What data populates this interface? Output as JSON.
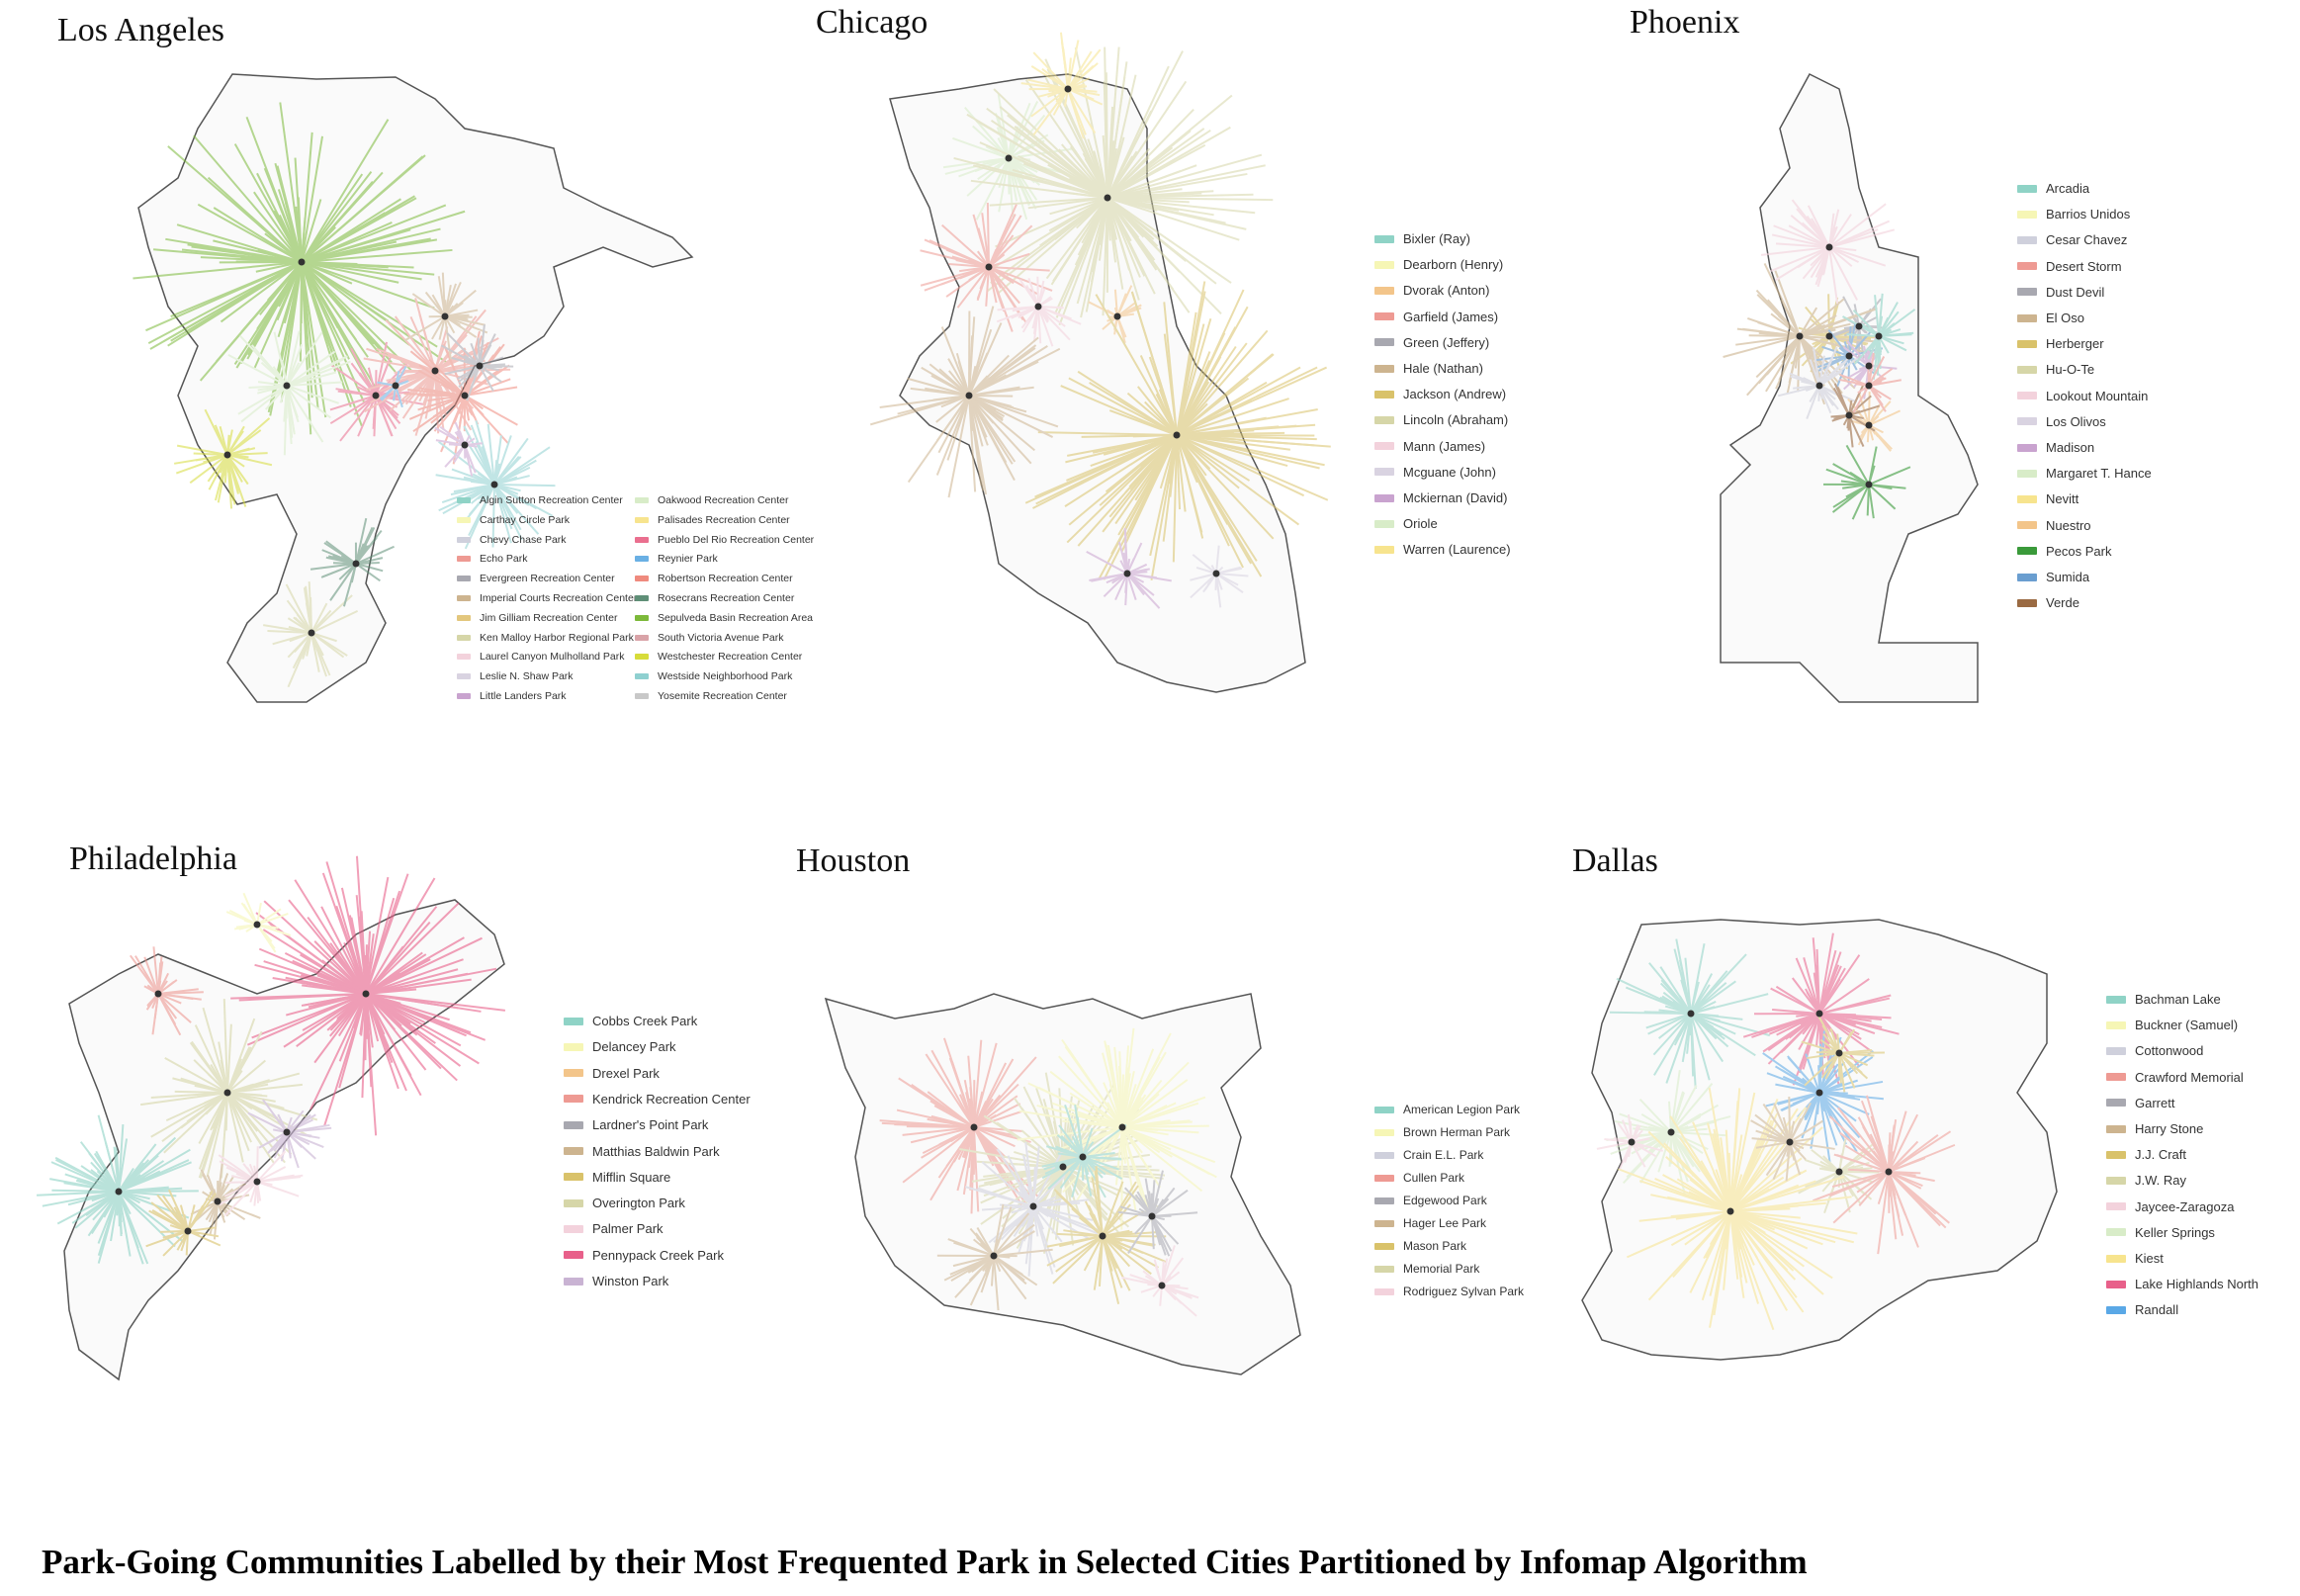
{
  "caption": "Park-Going Communities Labelled by their Most Frequented Park in Selected Cities Partitioned by Infomap Algorithm",
  "panels": [
    {
      "id": "los-angeles",
      "title": "Los Angeles",
      "legend": [
        {
          "label": "Algin Sutton Recreation Center",
          "color": "#8fd3c6"
        },
        {
          "label": "Carthay Circle Park",
          "color": "#f6f6b5"
        },
        {
          "label": "Chevy Chase Park",
          "color": "#cfd0dc"
        },
        {
          "label": "Echo Park",
          "color": "#ee9a93"
        },
        {
          "label": "Evergreen Recreation Center",
          "color": "#a8a8b0"
        },
        {
          "label": "Imperial Courts Recreation Center",
          "color": "#cdb48f"
        },
        {
          "label": "Jim Gilliam Recreation Center",
          "color": "#e3c77d"
        },
        {
          "label": "Ken Malloy Harbor Regional Park",
          "color": "#d6d6a8"
        },
        {
          "label": "Laurel Canyon Mulholland Park",
          "color": "#f3d2dc"
        },
        {
          "label": "Leslie N. Shaw Park",
          "color": "#d9d3e1"
        },
        {
          "label": "Little Landers Park",
          "color": "#c9a3cf"
        },
        {
          "label": "Oakwood Recreation Center",
          "color": "#d8ecc8"
        },
        {
          "label": "Palisades Recreation Center",
          "color": "#f7e48e"
        },
        {
          "label": "Pueblo Del Rio Recreation Center",
          "color": "#ea6f8f"
        },
        {
          "label": "Reynier Park",
          "color": "#6ab0e4"
        },
        {
          "label": "Robertson Recreation Center",
          "color": "#ef8a7e"
        },
        {
          "label": "Rosecrans Recreation Center",
          "color": "#5f8f77"
        },
        {
          "label": "Sepulveda Basin Recreation Area",
          "color": "#7cb93a"
        },
        {
          "label": "South Victoria Avenue Park",
          "color": "#d9a3a8"
        },
        {
          "label": "Westchester Recreation Center",
          "color": "#d7dc3a"
        },
        {
          "label": "Westside Neighborhood Park",
          "color": "#8fd0d0"
        },
        {
          "label": "Yosemite Recreation Center",
          "color": "#c8c8c8"
        }
      ]
    },
    {
      "id": "chicago",
      "title": "Chicago",
      "legend": [
        {
          "label": "Bixler (Ray)",
          "color": "#8fd3c6"
        },
        {
          "label": "Dearborn (Henry)",
          "color": "#f6f6b5"
        },
        {
          "label": "Dvorak (Anton)",
          "color": "#f3c58a"
        },
        {
          "label": "Garfield (James)",
          "color": "#ee9a93"
        },
        {
          "label": "Green (Jeffery)",
          "color": "#a8a8b0"
        },
        {
          "label": "Hale (Nathan)",
          "color": "#cdb48f"
        },
        {
          "label": "Jackson (Andrew)",
          "color": "#d9c26a"
        },
        {
          "label": "Lincoln (Abraham)",
          "color": "#d6d6a8"
        },
        {
          "label": "Mann (James)",
          "color": "#f3d2dc"
        },
        {
          "label": "Mcguane (John)",
          "color": "#d9d3e1"
        },
        {
          "label": "Mckiernan (David)",
          "color": "#c9a3cf"
        },
        {
          "label": "Oriole",
          "color": "#d8ecc8"
        },
        {
          "label": "Warren (Laurence)",
          "color": "#f7e48e"
        }
      ]
    },
    {
      "id": "phoenix",
      "title": "Phoenix",
      "legend": [
        {
          "label": "Arcadia",
          "color": "#8fd3c6"
        },
        {
          "label": "Barrios Unidos",
          "color": "#f6f6b5"
        },
        {
          "label": "Cesar Chavez",
          "color": "#cfd0dc"
        },
        {
          "label": "Desert Storm",
          "color": "#ee9a93"
        },
        {
          "label": "Dust Devil",
          "color": "#a8a8b0"
        },
        {
          "label": "El Oso",
          "color": "#cdb48f"
        },
        {
          "label": "Herberger",
          "color": "#d9c26a"
        },
        {
          "label": "Hu-O-Te",
          "color": "#d6d6a8"
        },
        {
          "label": "Lookout Mountain",
          "color": "#f3d2dc"
        },
        {
          "label": "Los Olivos",
          "color": "#d9d3e1"
        },
        {
          "label": "Madison",
          "color": "#c9a3cf"
        },
        {
          "label": "Margaret T. Hance",
          "color": "#d8ecc8"
        },
        {
          "label": "Nevitt",
          "color": "#f7e48e"
        },
        {
          "label": "Nuestro",
          "color": "#f3c58a"
        },
        {
          "label": "Pecos Park",
          "color": "#3a9a3a"
        },
        {
          "label": "Sumida",
          "color": "#6a9ed0"
        },
        {
          "label": "Verde",
          "color": "#9a6a42"
        }
      ]
    },
    {
      "id": "philadelphia",
      "title": "Philadelphia",
      "legend": [
        {
          "label": "Cobbs Creek Park",
          "color": "#8fd3c6"
        },
        {
          "label": "Delancey Park",
          "color": "#f6f6b5"
        },
        {
          "label": "Drexel Park",
          "color": "#f3c58a"
        },
        {
          "label": "Kendrick Recreation Center",
          "color": "#ee9a93"
        },
        {
          "label": "Lardner's Point Park",
          "color": "#a8a8b0"
        },
        {
          "label": "Matthias Baldwin Park",
          "color": "#cdb48f"
        },
        {
          "label": "Mifflin Square",
          "color": "#d9c26a"
        },
        {
          "label": "Overington Park",
          "color": "#d6d6a8"
        },
        {
          "label": "Palmer Park",
          "color": "#f3d2dc"
        },
        {
          "label": "Pennypack Creek Park",
          "color": "#e8608a"
        },
        {
          "label": "Winston Park",
          "color": "#c9b3d3"
        }
      ]
    },
    {
      "id": "houston",
      "title": "Houston",
      "legend": [
        {
          "label": "American Legion Park",
          "color": "#8fd3c6"
        },
        {
          "label": "Brown Herman Park",
          "color": "#f6f6b5"
        },
        {
          "label": "Crain E.L. Park",
          "color": "#cfd0dc"
        },
        {
          "label": "Cullen Park",
          "color": "#ee9a93"
        },
        {
          "label": "Edgewood Park",
          "color": "#a8a8b0"
        },
        {
          "label": "Hager Lee Park",
          "color": "#cdb48f"
        },
        {
          "label": "Mason Park",
          "color": "#d9c26a"
        },
        {
          "label": "Memorial Park",
          "color": "#d6d6a8"
        },
        {
          "label": "Rodriguez Sylvan Park",
          "color": "#f3d2dc"
        }
      ]
    },
    {
      "id": "dallas",
      "title": "Dallas",
      "legend": [
        {
          "label": "Bachman Lake",
          "color": "#8fd3c6"
        },
        {
          "label": "Buckner (Samuel)",
          "color": "#f6f6b5"
        },
        {
          "label": "Cottonwood",
          "color": "#cfd0dc"
        },
        {
          "label": "Crawford Memorial",
          "color": "#ee9a93"
        },
        {
          "label": "Garrett",
          "color": "#a8a8b0"
        },
        {
          "label": "Harry Stone",
          "color": "#cdb48f"
        },
        {
          "label": "J.J. Craft",
          "color": "#d9c26a"
        },
        {
          "label": "J.W. Ray",
          "color": "#d6d6a8"
        },
        {
          "label": "Jaycee-Zaragoza",
          "color": "#f3d2dc"
        },
        {
          "label": "Keller Springs",
          "color": "#d8ecc8"
        },
        {
          "label": "Kiest",
          "color": "#f7e48e"
        },
        {
          "label": "Lake Highlands North",
          "color": "#e8608a"
        },
        {
          "label": "Randall",
          "color": "#5aa8e6"
        }
      ]
    }
  ]
}
